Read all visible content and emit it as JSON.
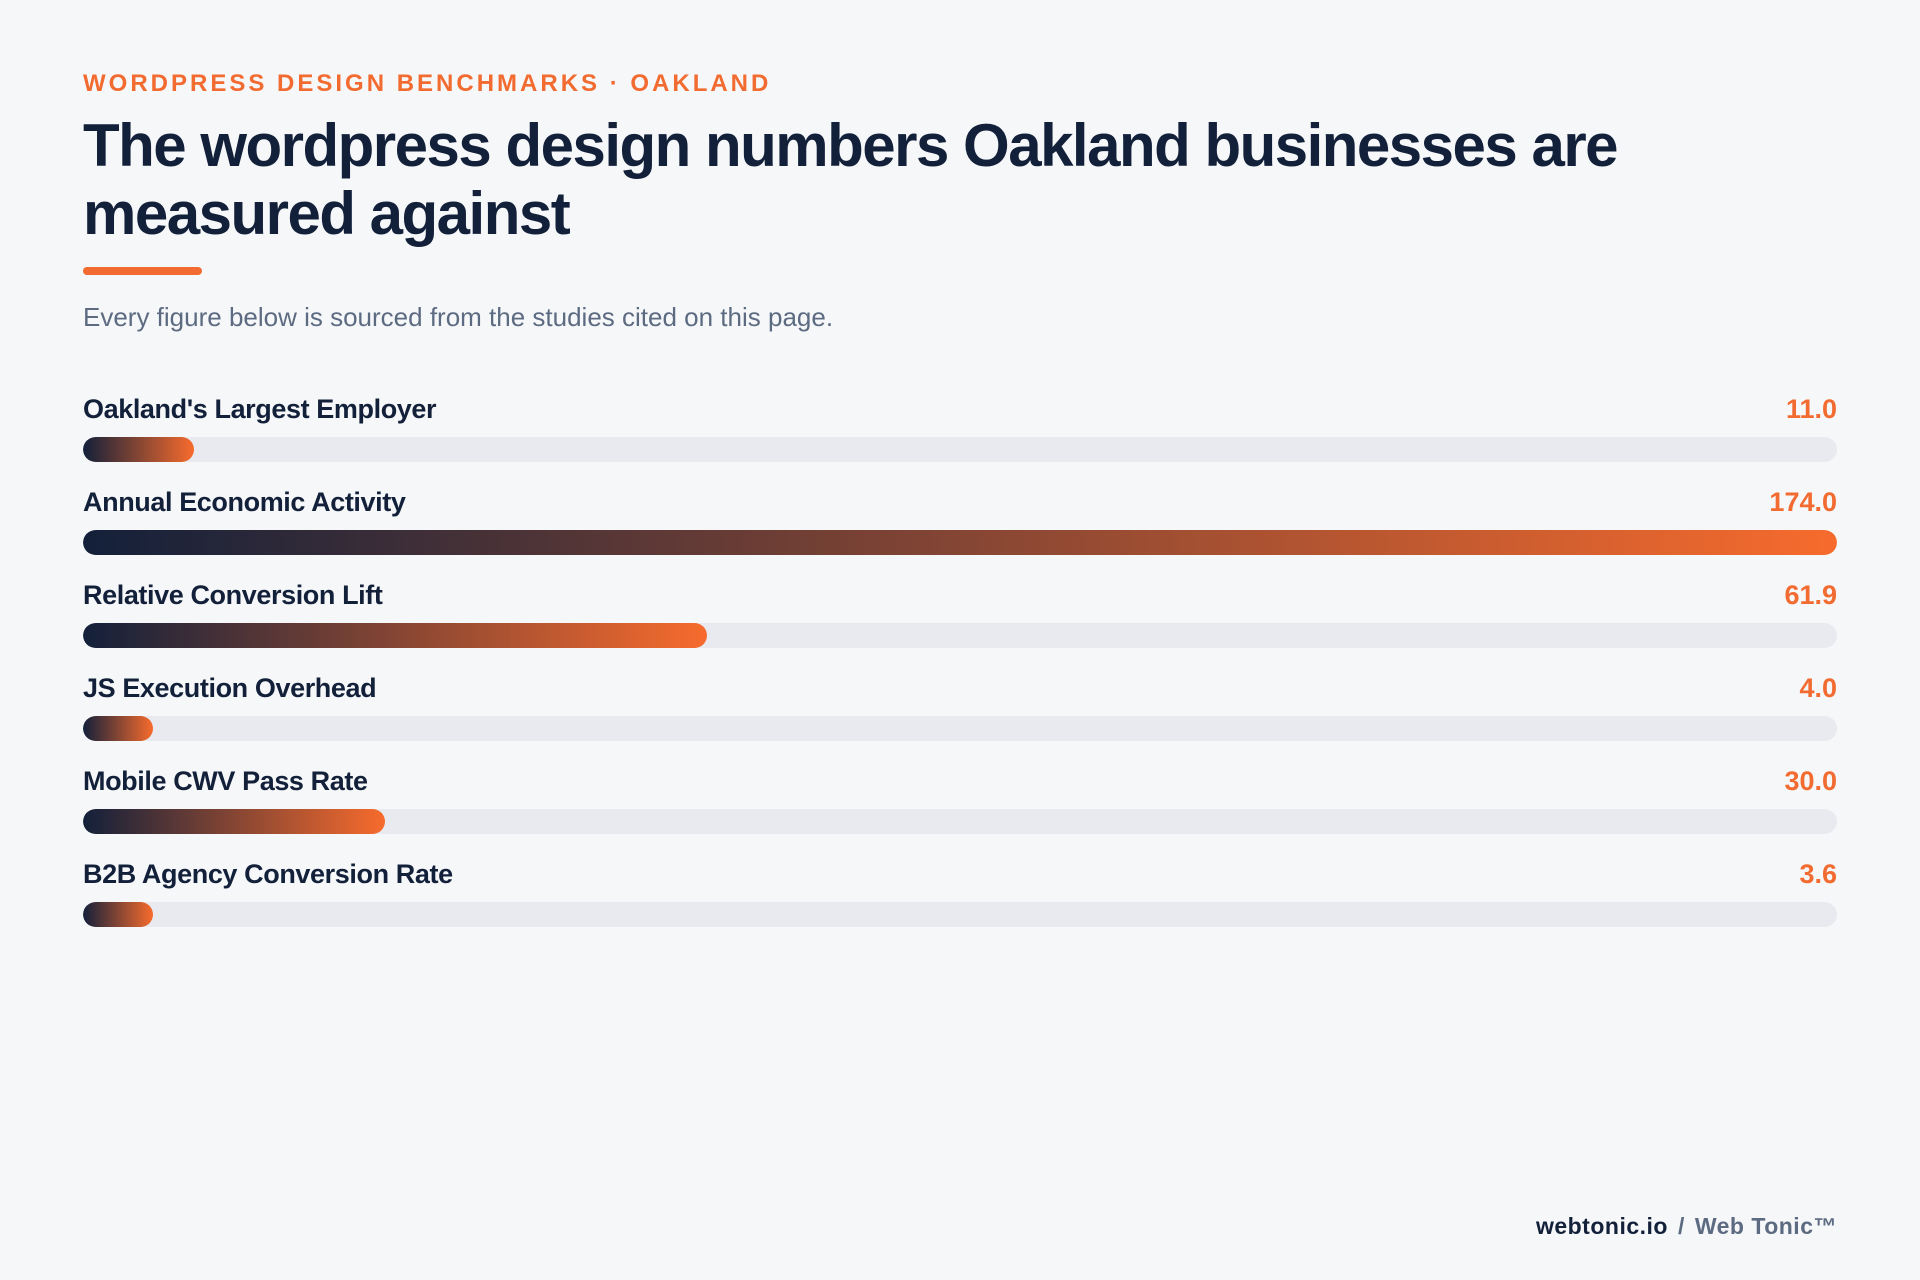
{
  "header": {
    "eyebrow": "WORDPRESS DESIGN BENCHMARKS · OAKLAND",
    "title": "The wordpress design numbers Oakland businesses are measured against",
    "subtitle": "Every figure below is sourced from the studies cited on this page."
  },
  "colors": {
    "accent": "#f26b30",
    "navy": "#13203a",
    "track": "#e8eaf0",
    "background": "#f6f7f9"
  },
  "chart_data": {
    "type": "bar",
    "orientation": "horizontal",
    "categories": [
      "Oakland's Largest Employer",
      "Annual Economic Activity",
      "Relative Conversion Lift",
      "JS Execution Overhead",
      "Mobile CWV Pass Rate",
      "B2B Agency Conversion Rate"
    ],
    "values": [
      11.0,
      174.0,
      61.9,
      4.0,
      30.0,
      3.6
    ],
    "value_labels": [
      "11.0",
      "174.0",
      "61.9",
      "4.0",
      "30.0",
      "3.6"
    ],
    "xlim": [
      0,
      174
    ],
    "grid": false,
    "legend": "none"
  },
  "footer": {
    "site": "webtonic.io",
    "separator": "/",
    "brand": "Web Tonic™"
  }
}
